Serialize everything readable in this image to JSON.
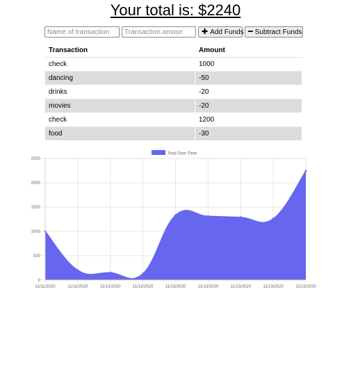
{
  "header": {
    "total_text": "Your total is: $2240"
  },
  "form": {
    "name_placeholder": "Name of transaction",
    "amount_placeholder": "Transaction amount",
    "add_label": "Add Funds",
    "subtract_label": "Subtract Funds",
    "add_icon": "plus-icon",
    "subtract_icon": "minus-icon"
  },
  "table": {
    "headers": [
      "Transaction",
      "Amount"
    ],
    "rows": [
      {
        "name": "check",
        "amount": "1000"
      },
      {
        "name": "dancing",
        "amount": "-50"
      },
      {
        "name": "drinks",
        "amount": "-20"
      },
      {
        "name": "movies",
        "amount": "-20"
      },
      {
        "name": "check",
        "amount": "1200"
      },
      {
        "name": "food",
        "amount": "-30"
      }
    ]
  },
  "chart_data": {
    "type": "area",
    "x": [
      "11/11/2020",
      "11/11/2020",
      "11/13/2020",
      "11/13/2020",
      "11/13/2020",
      "11/13/2020",
      "11/13/2020",
      "11/13/2020",
      "11/13/2020"
    ],
    "series": [
      {
        "name": "Total Over Time",
        "values": [
          1000,
          200,
          150,
          130,
          1330,
          1310,
          1290,
          1260,
          2240
        ],
        "color": "#6666ee"
      }
    ],
    "ylim": [
      0,
      2500
    ],
    "yticks": [
      0,
      500,
      1000,
      1500,
      2000,
      2500
    ],
    "grid": true,
    "legend": "top-center"
  }
}
